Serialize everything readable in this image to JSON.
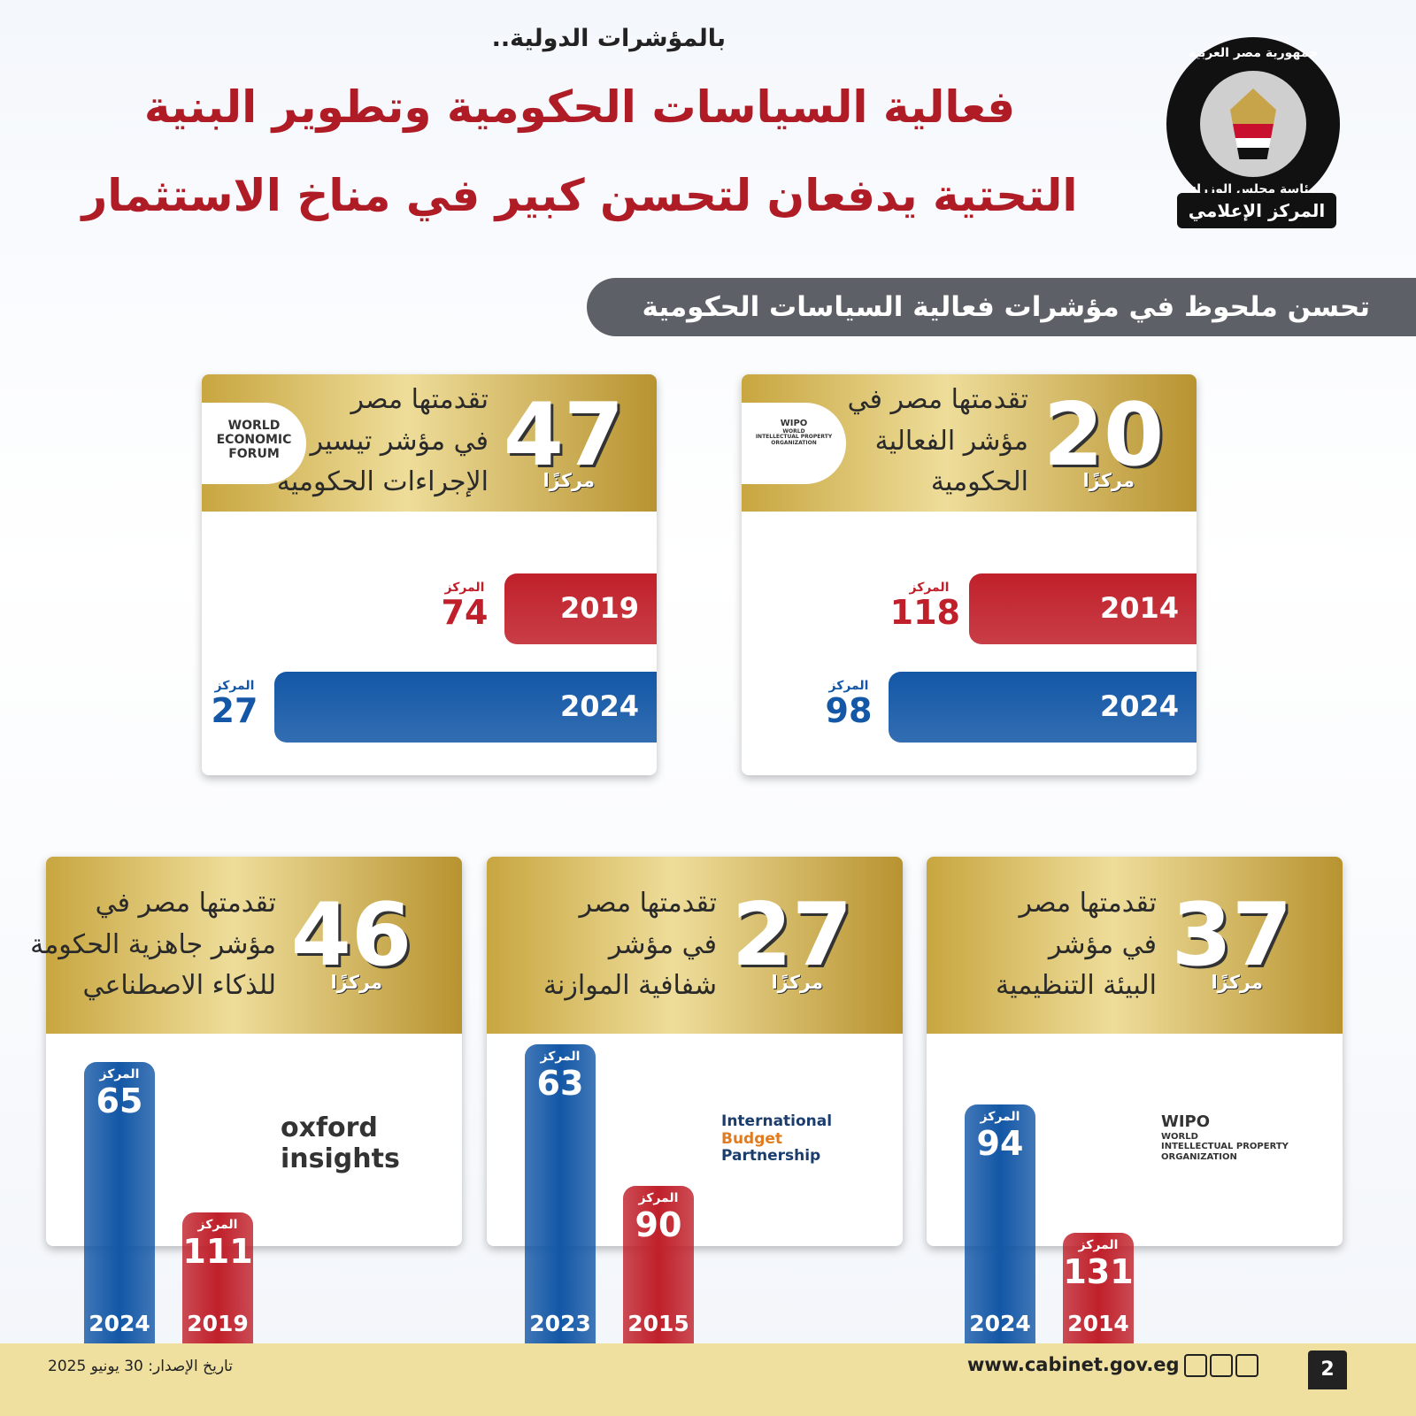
{
  "header": {
    "kicker": "بالمؤشرات الدولية..",
    "title_lines": [
      "فعالية السياسات الحكومية وتطوير البنية",
      "التحتية يدفعان لتحسن كبير في مناخ الاستثمار"
    ],
    "logo": {
      "top_text": "جمهورية مصر العربية",
      "middle_text": "رئاسة مجلس الوزراء",
      "ribbon": "المركز الإعلامي"
    }
  },
  "section_title": "تحسن ملحوظ في مؤشرات فعالية السياسات الحكومية",
  "cards": [
    {
      "rank": 20,
      "rank_unit": "مركزًا",
      "description": [
        "تقدمتها مصر في",
        "مؤشر الفعالية",
        "الحكومية"
      ],
      "source": [
        "WIPO",
        "WORLD",
        "INTELLECTUAL PROPERTY",
        "ORGANIZATION"
      ],
      "bars": [
        {
          "year": 2014,
          "rank_label": "المركز",
          "rank": 118,
          "color": "#c0202a"
        },
        {
          "year": 2024,
          "rank_label": "المركز",
          "rank": 98,
          "color": "#1357a6"
        }
      ]
    },
    {
      "rank": 47,
      "rank_unit": "مركزًا",
      "description": [
        "تقدمتها مصر",
        "في مؤشر تيسير",
        "الإجراءات الحكومية"
      ],
      "source": [
        "WORLD",
        "ECONOMIC",
        "FORUM"
      ],
      "bars": [
        {
          "year": 2019,
          "rank_label": "المركز",
          "rank": 74,
          "color": "#c0202a"
        },
        {
          "year": 2024,
          "rank_label": "المركز",
          "rank": 27,
          "color": "#1357a6"
        }
      ]
    },
    {
      "rank": 37,
      "rank_unit": "مركزًا",
      "description": [
        "تقدمتها مصر",
        "في مؤشر",
        "البيئة التنظيمية"
      ],
      "source": [
        "WIPO",
        "WORLD",
        "INTELLECTUAL PROPERTY",
        "ORGANIZATION"
      ],
      "bars": [
        {
          "year": 2024,
          "rank_label": "المركز",
          "rank": 94,
          "color": "#1357a6"
        },
        {
          "year": 2014,
          "rank_label": "المركز",
          "rank": 131,
          "color": "#c0202a"
        }
      ]
    },
    {
      "rank": 27,
      "rank_unit": "مركزًا",
      "description": [
        "تقدمتها مصر",
        "في مؤشر",
        "شفافية الموازنة"
      ],
      "source": [
        "International",
        "Budget",
        "Partnership"
      ],
      "bars": [
        {
          "year": 2023,
          "rank_label": "المركز",
          "rank": 63,
          "color": "#1357a6"
        },
        {
          "year": 2015,
          "rank_label": "المركز",
          "rank": 90,
          "color": "#c0202a"
        }
      ]
    },
    {
      "rank": 46,
      "rank_unit": "مركزًا",
      "description": [
        "تقدمتها مصر في",
        "مؤشر جاهزية الحكومة",
        "للذكاء الاصطناعي"
      ],
      "source": [
        "oxford",
        "insights"
      ],
      "bars": [
        {
          "year": 2024,
          "rank_label": "المركز",
          "rank": 65,
          "color": "#1357a6"
        },
        {
          "year": 2019,
          "rank_label": "المركز",
          "rank": 111,
          "color": "#c0202a"
        }
      ]
    }
  ],
  "footer": {
    "page": 2,
    "website": "www.cabinet.gov.eg",
    "date": "تاريخ الإصدار: 30 يونيو 2025"
  }
}
